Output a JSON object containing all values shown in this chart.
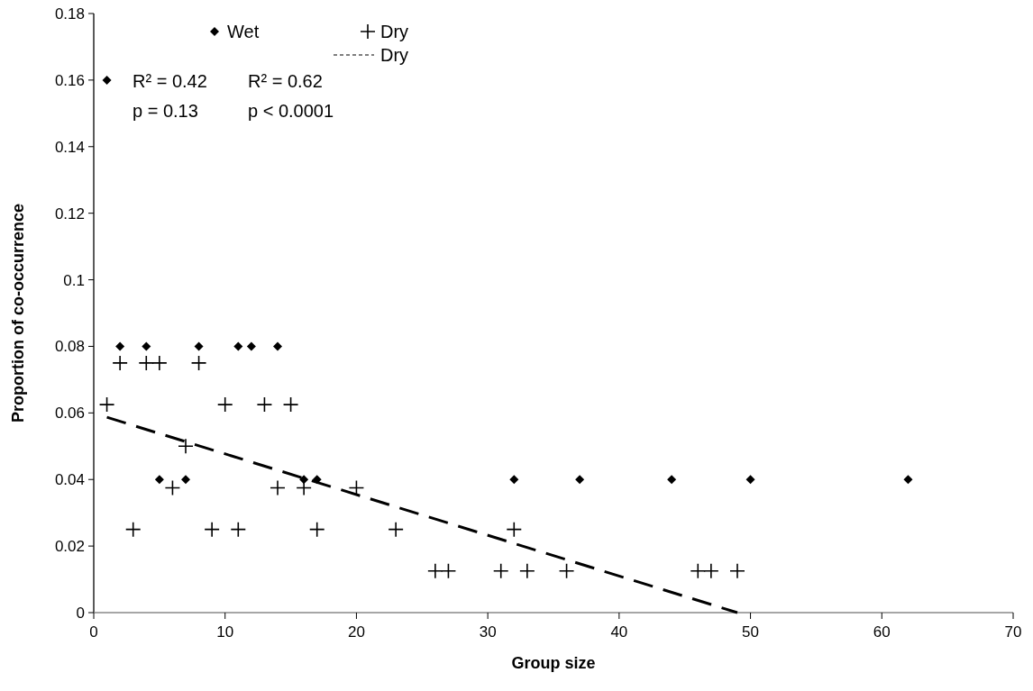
{
  "chart_data": {
    "type": "scatter",
    "xlabel": "Group size",
    "ylabel": "Proportion of co-occurrence",
    "xlim": [
      0,
      70
    ],
    "ylim": [
      0,
      0.18
    ],
    "xticks": [
      0,
      10,
      20,
      30,
      40,
      50,
      60,
      70
    ],
    "yticks": [
      0,
      0.02,
      0.04,
      0.06,
      0.08,
      0.1,
      0.12,
      0.14,
      0.16,
      0.18
    ],
    "grid": false,
    "legend": "top left",
    "series": [
      {
        "name": "Wet",
        "color": "#000000",
        "marker": "diamond",
        "x": [
          1,
          2,
          4,
          8,
          11,
          12,
          14,
          5,
          7,
          16,
          17,
          32,
          37,
          44,
          50,
          62
        ],
        "values": [
          0.16,
          0.08,
          0.08,
          0.08,
          0.08,
          0.08,
          0.08,
          0.04,
          0.04,
          0.04,
          0.04,
          0.04,
          0.04,
          0.04,
          0.04,
          0.04
        ]
      },
      {
        "name": "Dry",
        "color": "#000000",
        "marker": "cross",
        "x": [
          1,
          2,
          3,
          4,
          5,
          6,
          7,
          8,
          9,
          10,
          11,
          13,
          14,
          15,
          16,
          17,
          20,
          23,
          26,
          27,
          31,
          32,
          33,
          36,
          46,
          47,
          49
        ],
        "values": [
          0.0625,
          0.075,
          0.025,
          0.075,
          0.075,
          0.0375,
          0.05,
          0.075,
          0.025,
          0.0625,
          0.025,
          0.0625,
          0.0375,
          0.0625,
          0.0375,
          0.025,
          0.0375,
          0.025,
          0.0125,
          0.0125,
          0.0125,
          0.025,
          0.0125,
          0.0125,
          0.0125,
          0.0125,
          0.0125
        ]
      },
      {
        "name": "Dry",
        "type": "line",
        "color": "#000000",
        "marker": "none",
        "line_style": "dashed",
        "x": [
          1,
          49
        ],
        "values": [
          0.0587,
          0
        ]
      }
    ],
    "annotations": [
      "R² = 0.42",
      "p = 0.13",
      "R² = 0.62",
      "p < 0.0001"
    ]
  }
}
